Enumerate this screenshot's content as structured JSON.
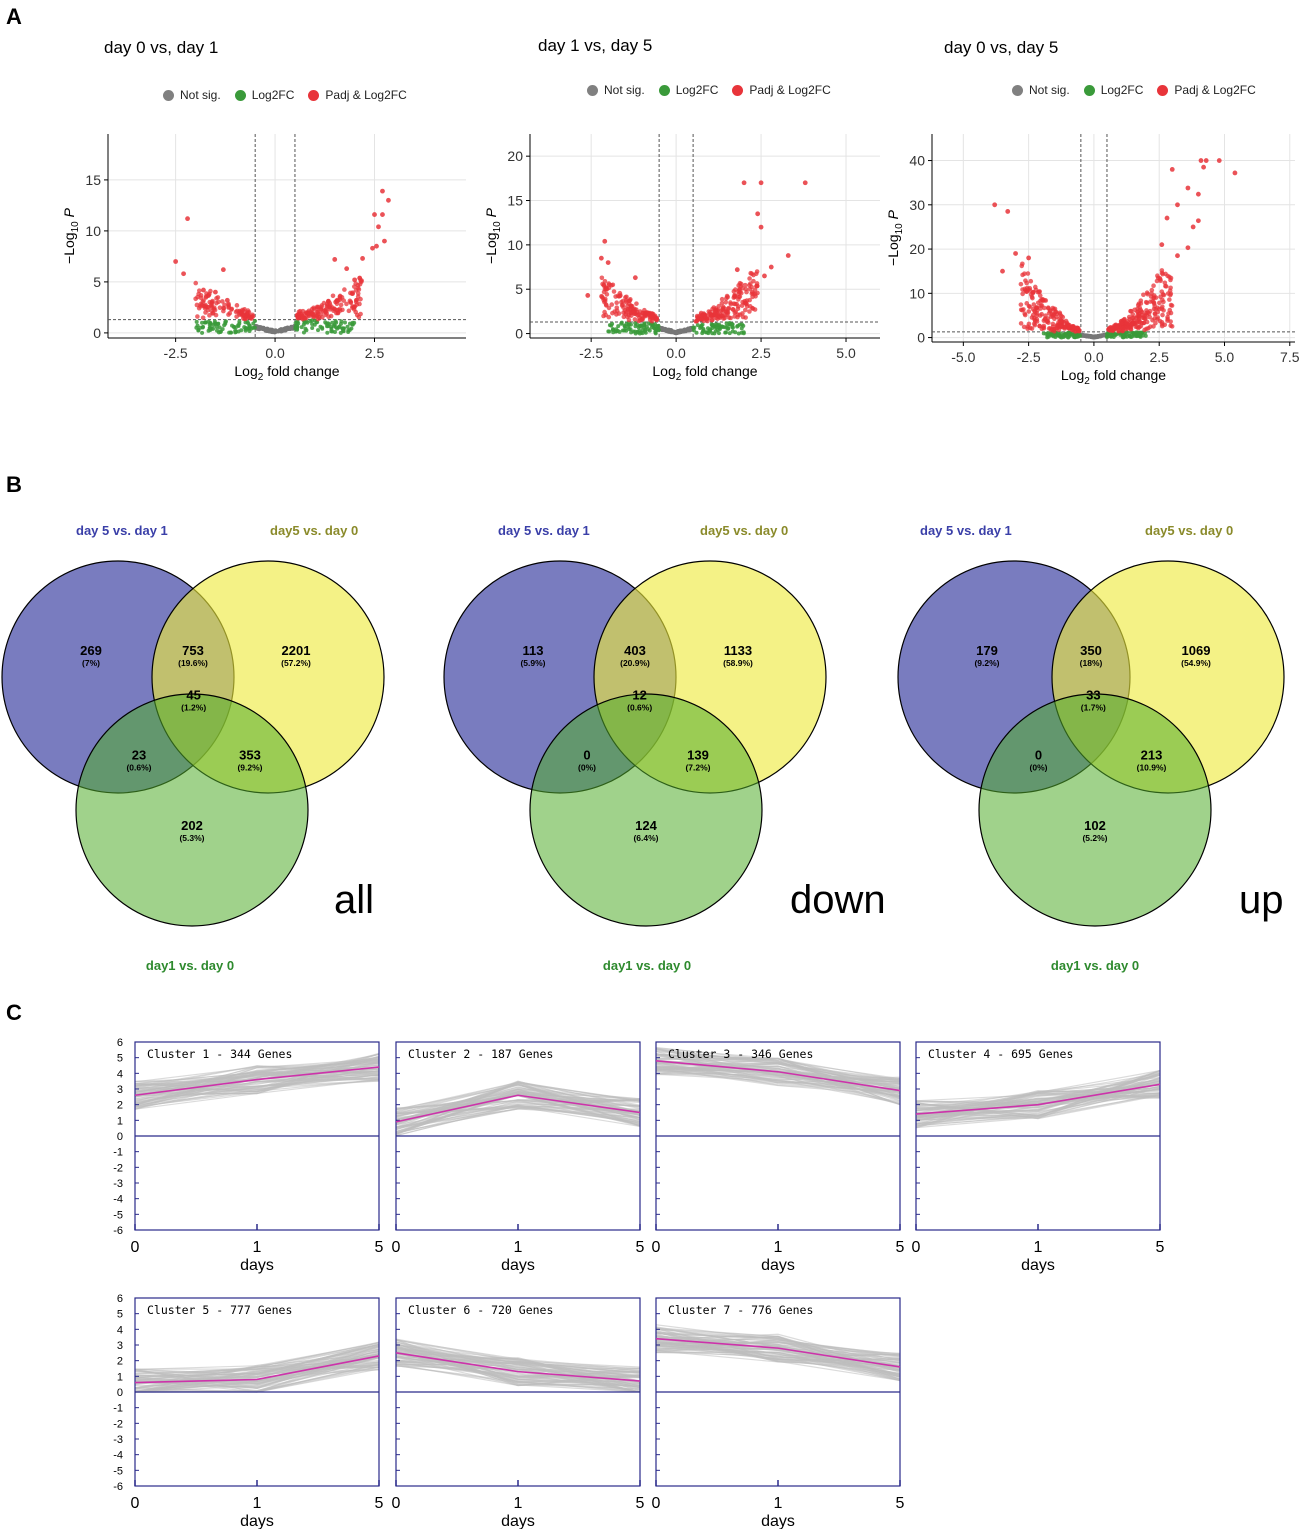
{
  "panels": {
    "a": "A",
    "b": "B",
    "c": "C"
  },
  "legend": {
    "items": [
      {
        "label": "Not sig.",
        "color": "#808080"
      },
      {
        "label": "Log2FC",
        "color": "#3a9a3a"
      },
      {
        "label": "Padj & Log2FC",
        "color": "#e8343a"
      }
    ]
  },
  "chart_data": [
    {
      "type": "scatter",
      "title": "day 0 vs, day 1",
      "xlabel": "Log2 fold change",
      "ylabel": "−Log10 P",
      "xlim": [
        -4.2,
        4.8
      ],
      "ylim": [
        -0.5,
        19.5
      ],
      "xticks": [
        -2.5,
        0,
        2.5
      ],
      "xtick_labels": [
        "-2.5",
        "0.0",
        "2.5"
      ],
      "yticks": [
        0,
        5,
        10,
        15
      ],
      "vlines": [
        -0.5,
        0.5
      ],
      "hline": 1.3,
      "series": [
        {
          "name": "Padj & Log2FC",
          "points": [
            [
              -2.2,
              11.2
            ],
            [
              -2.5,
              7.0
            ],
            [
              -2.3,
              5.8
            ],
            [
              -1.3,
              6.2
            ],
            [
              2.7,
              13.9
            ],
            [
              2.85,
              13.0
            ],
            [
              2.5,
              11.6
            ],
            [
              2.7,
              11.6
            ],
            [
              2.6,
              10.4
            ],
            [
              2.75,
              9.0
            ],
            [
              2.45,
              8.3
            ],
            [
              2.55,
              8.5
            ],
            [
              2.2,
              7.3
            ],
            [
              2.0,
              5.2
            ],
            [
              1.8,
              6.3
            ],
            [
              1.5,
              7.2
            ],
            [
              -1.5,
              4.0
            ],
            [
              -1.8,
              4.2
            ],
            [
              -1.2,
              3.2
            ]
          ]
        },
        {
          "name": "Padj & Log2FC bulk",
          "points": [],
          "generated": {
            "negRange": [
              -2.0,
              -0.55
            ],
            "posRange": [
              0.55,
              2.2
            ],
            "spread": 1.6,
            "count": 260
          }
        }
      ]
    },
    {
      "type": "scatter",
      "title": "day 1 vs, day 5",
      "xlabel": "Log2 fold change",
      "ylabel": "−Log10 P",
      "xlim": [
        -4.3,
        6.0
      ],
      "ylim": [
        -0.5,
        22.5
      ],
      "xticks": [
        -2.5,
        0,
        2.5,
        5
      ],
      "xtick_labels": [
        "-2.5",
        "0.0",
        "2.5",
        "5.0"
      ],
      "yticks": [
        0,
        5,
        10,
        15,
        20
      ],
      "vlines": [
        -0.5,
        0.5
      ],
      "hline": 1.3,
      "series": [
        {
          "name": "Padj & Log2FC",
          "points": [
            [
              -2.1,
              10.4
            ],
            [
              -2.2,
              8.5
            ],
            [
              -2.0,
              8.0
            ],
            [
              -2.6,
              4.3
            ],
            [
              -1.2,
              6.3
            ],
            [
              2.5,
              17.0
            ],
            [
              2.0,
              17.0
            ],
            [
              3.8,
              17.0
            ],
            [
              2.4,
              13.5
            ],
            [
              2.5,
              12.0
            ],
            [
              3.3,
              8.8
            ],
            [
              2.8,
              7.5
            ],
            [
              1.8,
              7.2
            ],
            [
              2.6,
              6.5
            ]
          ]
        },
        {
          "name": "Padj & Log2FC bulk",
          "points": [],
          "generated": {
            "negRange": [
              -2.2,
              -0.55
            ],
            "posRange": [
              0.55,
              2.4
            ],
            "spread": 2.0,
            "count": 320
          }
        }
      ]
    },
    {
      "type": "scatter",
      "title": "day 0 vs, day 5",
      "xlabel": "Log2 fold change",
      "ylabel": "−Log10 P",
      "xlim": [
        -6.2,
        7.7
      ],
      "ylim": [
        -1,
        46
      ],
      "xticks": [
        -5,
        -2.5,
        0,
        2.5,
        5,
        7.5
      ],
      "xtick_labels": [
        "-5.0",
        "-2.5",
        "0.0",
        "2.5",
        "5.0",
        "7.5"
      ],
      "yticks": [
        0,
        10,
        20,
        30,
        40
      ],
      "vlines": [
        -0.5,
        0.5
      ],
      "hline": 1.3,
      "series": [
        {
          "name": "Padj & Log2FC",
          "points": [
            [
              -3.8,
              30.0
            ],
            [
              -3.3,
              28.5
            ],
            [
              4.1,
              40.0
            ],
            [
              4.3,
              40.0
            ],
            [
              4.8,
              40.0
            ],
            [
              4.2,
              38.5
            ],
            [
              5.4,
              37.2
            ],
            [
              3.0,
              38.0
            ],
            [
              3.6,
              33.8
            ],
            [
              4.0,
              32.4
            ],
            [
              3.2,
              30.0
            ],
            [
              4.0,
              26.4
            ],
            [
              2.8,
              27.0
            ],
            [
              3.8,
              25.0
            ],
            [
              2.6,
              21.0
            ],
            [
              3.6,
              20.3
            ],
            [
              -3.0,
              19.0
            ],
            [
              -2.5,
              18.0
            ],
            [
              -3.5,
              15.0
            ],
            [
              3.2,
              18.5
            ]
          ]
        },
        {
          "name": "Padj & Log2FC bulk",
          "points": [],
          "generated": {
            "negRange": [
              -2.8,
              -0.55
            ],
            "posRange": [
              0.55,
              3.0
            ],
            "spread": 4.0,
            "count": 420
          }
        }
      ]
    }
  ],
  "venn": [
    {
      "word": "all",
      "labels": {
        "top_left": "day 5 vs. day 1",
        "top_right": "day5 vs. day 0",
        "bottom": "day1 vs. day 0"
      },
      "regions": [
        {
          "n": "269",
          "p": "(7%)"
        },
        {
          "n": "753",
          "p": "(19.6%)"
        },
        {
          "n": "2201",
          "p": "(57.2%)"
        },
        {
          "n": "45",
          "p": "(1.2%)"
        },
        {
          "n": "23",
          "p": "(0.6%)"
        },
        {
          "n": "353",
          "p": "(9.2%)"
        },
        {
          "n": "202",
          "p": "(5.3%)"
        }
      ]
    },
    {
      "word": "down",
      "labels": {
        "top_left": "day 5 vs. day 1",
        "top_right": "day5 vs. day 0",
        "bottom": "day1 vs. day 0"
      },
      "regions": [
        {
          "n": "113",
          "p": "(5.9%)"
        },
        {
          "n": "403",
          "p": "(20.9%)"
        },
        {
          "n": "1133",
          "p": "(58.9%)"
        },
        {
          "n": "12",
          "p": "(0.6%)"
        },
        {
          "n": "0",
          "p": "(0%)"
        },
        {
          "n": "139",
          "p": "(7.2%)"
        },
        {
          "n": "124",
          "p": "(6.4%)"
        }
      ]
    },
    {
      "word": "up",
      "labels": {
        "top_left": "day 5 vs. day 1",
        "top_right": "day5 vs. day 0",
        "bottom": "day1 vs. day 0"
      },
      "regions": [
        {
          "n": "179",
          "p": "(9.2%)"
        },
        {
          "n": "350",
          "p": "(18%)"
        },
        {
          "n": "1069",
          "p": "(54.9%)"
        },
        {
          "n": "33",
          "p": "(1.7%)"
        },
        {
          "n": "0",
          "p": "(0%)"
        },
        {
          "n": "213",
          "p": "(10.9%)"
        },
        {
          "n": "102",
          "p": "(5.2%)"
        }
      ]
    }
  ],
  "clusters": {
    "xlabel": "days",
    "xtick_labels": [
      "0",
      "1",
      "5"
    ],
    "ytick_labels": [
      "6",
      "5",
      "4",
      "3",
      "2",
      "1",
      "0",
      "-1",
      "-2",
      "-3",
      "-4",
      "-5",
      "-6"
    ],
    "ylim": [
      -6,
      6
    ],
    "items": [
      {
        "title": "Cluster 1 - 344 Genes",
        "mean": [
          2.6,
          3.6,
          4.4
        ]
      },
      {
        "title": "Cluster 2 - 187 Genes",
        "mean": [
          0.9,
          2.6,
          1.5
        ]
      },
      {
        "title": "Cluster 3 - 346 Genes",
        "mean": [
          4.8,
          4.1,
          2.9
        ]
      },
      {
        "title": "Cluster 4 - 695 Genes",
        "mean": [
          1.4,
          2.0,
          3.3
        ]
      },
      {
        "title": "Cluster 5 - 777 Genes",
        "mean": [
          0.6,
          0.8,
          2.3
        ]
      },
      {
        "title": "Cluster 6 - 720 Genes",
        "mean": [
          2.5,
          1.3,
          0.7
        ]
      },
      {
        "title": "Cluster 7 - 776 Genes",
        "mean": [
          3.4,
          2.8,
          1.6
        ]
      }
    ]
  }
}
